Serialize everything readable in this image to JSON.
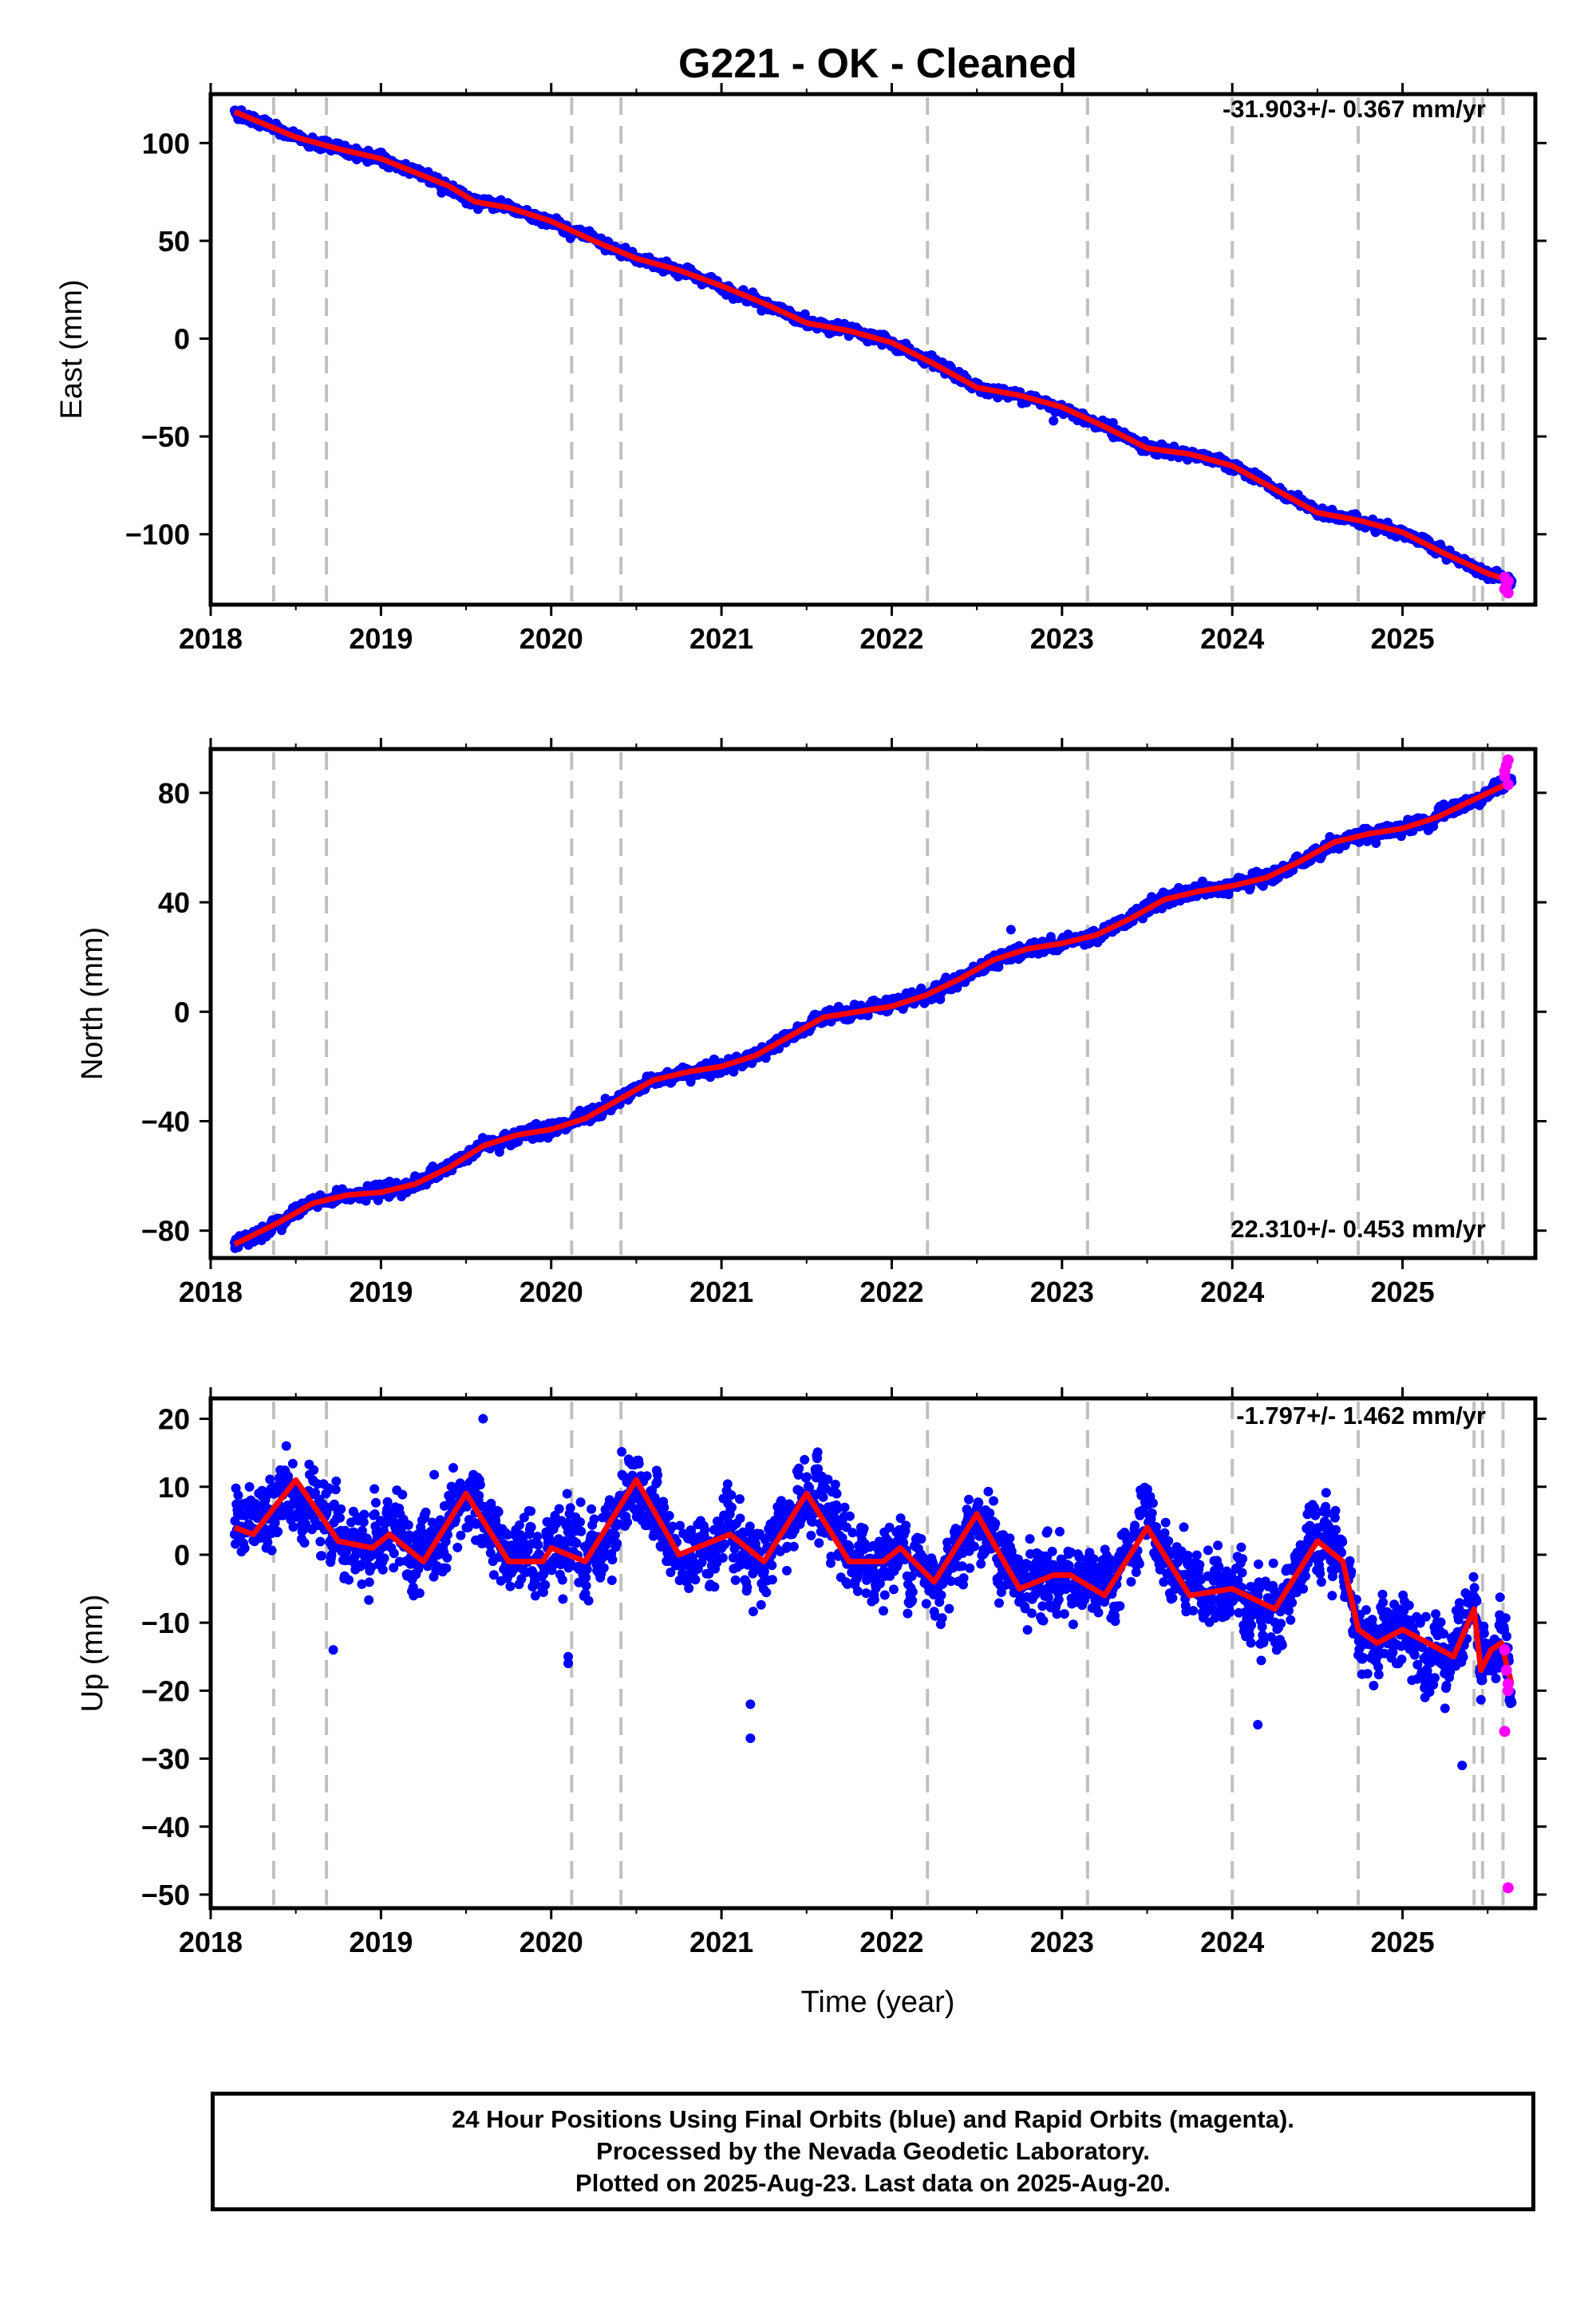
{
  "title": "G221  - OK - Cleaned",
  "xlabel": "Time (year)",
  "footer": {
    "line1": "24 Hour Positions Using Final Orbits (blue) and Rapid Orbits (magenta).",
    "line2": "Processed by the Nevada Geodetic Laboratory.",
    "line3": "Plotted on 2025-Aug-23. Last data on 2025-Aug-20."
  },
  "colors": {
    "final": "#0000ff",
    "rapid": "#ff00ff",
    "model": "#ff0000",
    "events": "#c0c0c0"
  },
  "chart_data": [
    {
      "type": "scatter",
      "ylabel": "East (mm)",
      "rate": "-31.903+/- 0.367 mm/yr",
      "xlim": [
        2018.0,
        2025.78
      ],
      "ylim": [
        -136,
        125
      ],
      "xticks": [
        2018,
        2019,
        2020,
        2021,
        2022,
        2023,
        2024,
        2025
      ],
      "yticks": [
        100,
        50,
        0,
        -50,
        -100
      ],
      "ytick_labels": [
        "100",
        "50",
        "0",
        "−50",
        "−100"
      ],
      "events": [
        2018.37,
        2018.68,
        2020.12,
        2020.41,
        2022.21,
        2023.15,
        2024.0,
        2024.74,
        2025.42,
        2025.47,
        2025.59
      ],
      "trend_knots": [
        [
          2018.14,
          116
        ],
        [
          2018.5,
          103
        ],
        [
          2018.75,
          97
        ],
        [
          2019.0,
          92
        ],
        [
          2019.4,
          78
        ],
        [
          2019.55,
          70
        ],
        [
          2019.75,
          67
        ],
        [
          2020.0,
          60
        ],
        [
          2020.25,
          50
        ],
        [
          2020.5,
          41
        ],
        [
          2020.75,
          35
        ],
        [
          2021.0,
          27
        ],
        [
          2021.25,
          18
        ],
        [
          2021.5,
          8
        ],
        [
          2021.75,
          4
        ],
        [
          2022.0,
          -2
        ],
        [
          2022.25,
          -13
        ],
        [
          2022.5,
          -25
        ],
        [
          2022.75,
          -29
        ],
        [
          2023.0,
          -35
        ],
        [
          2023.25,
          -45
        ],
        [
          2023.5,
          -56
        ],
        [
          2023.75,
          -59
        ],
        [
          2024.0,
          -65
        ],
        [
          2024.25,
          -77
        ],
        [
          2024.5,
          -89
        ],
        [
          2024.75,
          -93
        ],
        [
          2025.0,
          -99
        ],
        [
          2025.25,
          -110
        ],
        [
          2025.5,
          -120
        ],
        [
          2025.64,
          -124
        ]
      ],
      "model_series": {
        "name": "",
        "values": [
          [
            2018.14,
            116
          ],
          [
            2018.5,
            103
          ],
          [
            2018.75,
            97
          ],
          [
            2019.0,
            92
          ],
          [
            2019.4,
            78
          ],
          [
            2019.55,
            70
          ],
          [
            2019.75,
            67
          ],
          [
            2020.0,
            60
          ],
          [
            2020.25,
            50
          ],
          [
            2020.5,
            41
          ],
          [
            2020.75,
            35
          ],
          [
            2021.0,
            27
          ],
          [
            2021.25,
            18
          ],
          [
            2021.5,
            8
          ],
          [
            2021.75,
            4
          ],
          [
            2022.0,
            -2
          ],
          [
            2022.25,
            -13
          ],
          [
            2022.5,
            -25
          ],
          [
            2022.75,
            -29
          ],
          [
            2023.0,
            -35
          ],
          [
            2023.25,
            -45
          ],
          [
            2023.5,
            -56
          ],
          [
            2023.75,
            -59
          ],
          [
            2024.0,
            -65
          ],
          [
            2024.25,
            -77
          ],
          [
            2024.5,
            -89
          ],
          [
            2024.75,
            -93
          ],
          [
            2025.0,
            -99
          ],
          [
            2025.25,
            -110
          ],
          [
            2025.5,
            -120
          ],
          [
            2025.64,
            -124
          ]
        ]
      },
      "noise_mm": 1.6,
      "outliers": [
        [
          2023.3,
          -43
        ],
        [
          2022.95,
          -42
        ]
      ],
      "rapid_points": [
        [
          2025.6,
          -122
        ],
        [
          2025.61,
          -126
        ],
        [
          2025.62,
          -130
        ],
        [
          2025.62,
          -124
        ],
        [
          2025.6,
          -128
        ]
      ]
    },
    {
      "type": "scatter",
      "ylabel": "North (mm)",
      "rate": "22.310+/- 0.453 mm/yr",
      "xlim": [
        2018.0,
        2025.78
      ],
      "ylim": [
        -90,
        96
      ],
      "xticks": [
        2018,
        2019,
        2020,
        2021,
        2022,
        2023,
        2024,
        2025
      ],
      "yticks": [
        80,
        40,
        0,
        -40,
        -80
      ],
      "ytick_labels": [
        "80",
        "40",
        "0",
        "−40",
        "−80"
      ],
      "events": [
        2018.37,
        2018.68,
        2020.12,
        2020.41,
        2022.21,
        2023.15,
        2024.0,
        2024.74,
        2025.42,
        2025.47,
        2025.59
      ],
      "trend_knots": [
        [
          2018.14,
          -85
        ],
        [
          2018.4,
          -77
        ],
        [
          2018.6,
          -70
        ],
        [
          2018.8,
          -67
        ],
        [
          2019.0,
          -66
        ],
        [
          2019.2,
          -63
        ],
        [
          2019.4,
          -57
        ],
        [
          2019.6,
          -49
        ],
        [
          2019.8,
          -45
        ],
        [
          2020.0,
          -43
        ],
        [
          2020.2,
          -39
        ],
        [
          2020.4,
          -32
        ],
        [
          2020.6,
          -25
        ],
        [
          2020.8,
          -22
        ],
        [
          2021.0,
          -20
        ],
        [
          2021.2,
          -16
        ],
        [
          2021.4,
          -9
        ],
        [
          2021.6,
          -2
        ],
        [
          2021.8,
          0
        ],
        [
          2022.0,
          2
        ],
        [
          2022.2,
          6
        ],
        [
          2022.4,
          12
        ],
        [
          2022.6,
          19
        ],
        [
          2022.8,
          23
        ],
        [
          2023.0,
          25
        ],
        [
          2023.2,
          28
        ],
        [
          2023.4,
          34
        ],
        [
          2023.6,
          41
        ],
        [
          2023.8,
          44
        ],
        [
          2024.0,
          46
        ],
        [
          2024.2,
          49
        ],
        [
          2024.4,
          55
        ],
        [
          2024.6,
          62
        ],
        [
          2024.8,
          65
        ],
        [
          2025.0,
          67
        ],
        [
          2025.2,
          71
        ],
        [
          2025.4,
          77
        ],
        [
          2025.64,
          84
        ]
      ],
      "model_series": {
        "name": "",
        "values": [
          [
            2018.14,
            -85
          ],
          [
            2018.4,
            -77
          ],
          [
            2018.6,
            -70
          ],
          [
            2018.8,
            -67
          ],
          [
            2019.0,
            -66
          ],
          [
            2019.2,
            -63
          ],
          [
            2019.4,
            -57
          ],
          [
            2019.6,
            -49
          ],
          [
            2019.8,
            -45
          ],
          [
            2020.0,
            -43
          ],
          [
            2020.2,
            -39
          ],
          [
            2020.4,
            -32
          ],
          [
            2020.6,
            -25
          ],
          [
            2020.8,
            -22
          ],
          [
            2021.0,
            -20
          ],
          [
            2021.2,
            -16
          ],
          [
            2021.4,
            -9
          ],
          [
            2021.6,
            -2
          ],
          [
            2021.8,
            0
          ],
          [
            2022.0,
            2
          ],
          [
            2022.2,
            6
          ],
          [
            2022.4,
            12
          ],
          [
            2022.6,
            19
          ],
          [
            2022.8,
            23
          ],
          [
            2023.0,
            25
          ],
          [
            2023.2,
            28
          ],
          [
            2023.4,
            34
          ],
          [
            2023.6,
            41
          ],
          [
            2023.8,
            44
          ],
          [
            2024.0,
            46
          ],
          [
            2024.2,
            49
          ],
          [
            2024.4,
            55
          ],
          [
            2024.6,
            62
          ],
          [
            2024.8,
            65
          ],
          [
            2025.0,
            67
          ],
          [
            2025.2,
            71
          ],
          [
            2025.4,
            77
          ],
          [
            2025.64,
            84
          ]
        ]
      },
      "noise_mm": 1.5,
      "outliers": [
        [
          2022.7,
          30
        ],
        [
          2019.05,
          -62
        ]
      ],
      "rapid_points": [
        [
          2025.6,
          86
        ],
        [
          2025.61,
          90
        ],
        [
          2025.62,
          92
        ],
        [
          2025.62,
          83
        ],
        [
          2025.6,
          88
        ]
      ]
    },
    {
      "type": "scatter",
      "ylabel": "Up (mm)",
      "rate": "-1.797+/- 1.462 mm/yr",
      "xlim": [
        2018.0,
        2025.78
      ],
      "ylim": [
        -52,
        23
      ],
      "xticks": [
        2018,
        2019,
        2020,
        2021,
        2022,
        2023,
        2024,
        2025
      ],
      "yticks": [
        20,
        10,
        0,
        -10,
        -20,
        -30,
        -40,
        -50
      ],
      "ytick_labels": [
        "20",
        "10",
        "0",
        "−10",
        "−20",
        "−30",
        "−40",
        "−50"
      ],
      "events": [
        2018.37,
        2018.68,
        2020.12,
        2020.41,
        2022.21,
        2023.15,
        2024.0,
        2024.74,
        2025.42,
        2025.47,
        2025.59
      ],
      "trend_knots": [
        [
          2018.14,
          4
        ],
        [
          2018.25,
          3
        ],
        [
          2018.5,
          11
        ],
        [
          2018.75,
          2
        ],
        [
          2018.95,
          1
        ],
        [
          2019.05,
          3
        ],
        [
          2019.25,
          -1
        ],
        [
          2019.5,
          9
        ],
        [
          2019.75,
          -1
        ],
        [
          2019.95,
          -1
        ],
        [
          2020.0,
          1
        ],
        [
          2020.2,
          -1
        ],
        [
          2020.5,
          11
        ],
        [
          2020.75,
          0
        ],
        [
          2020.95,
          2
        ],
        [
          2021.05,
          3
        ],
        [
          2021.25,
          -1
        ],
        [
          2021.5,
          9
        ],
        [
          2021.75,
          -1
        ],
        [
          2021.95,
          -1
        ],
        [
          2022.05,
          1
        ],
        [
          2022.25,
          -4
        ],
        [
          2022.5,
          6
        ],
        [
          2022.75,
          -5
        ],
        [
          2022.95,
          -3
        ],
        [
          2023.05,
          -3
        ],
        [
          2023.25,
          -6
        ],
        [
          2023.5,
          4
        ],
        [
          2023.75,
          -6
        ],
        [
          2024.0,
          -5
        ],
        [
          2024.25,
          -8
        ],
        [
          2024.5,
          2
        ],
        [
          2024.65,
          -1
        ],
        [
          2024.74,
          -11
        ],
        [
          2024.85,
          -13
        ],
        [
          2025.0,
          -11
        ],
        [
          2025.15,
          -13
        ],
        [
          2025.3,
          -15
        ],
        [
          2025.42,
          -8
        ],
        [
          2025.46,
          -17
        ],
        [
          2025.52,
          -14
        ],
        [
          2025.58,
          -13
        ],
        [
          2025.64,
          -19
        ]
      ],
      "model_series": {
        "name": "",
        "values": [
          [
            2018.14,
            4
          ],
          [
            2018.25,
            3
          ],
          [
            2018.5,
            11
          ],
          [
            2018.75,
            2
          ],
          [
            2018.95,
            1
          ],
          [
            2019.05,
            3
          ],
          [
            2019.25,
            -1
          ],
          [
            2019.5,
            9
          ],
          [
            2019.75,
            -1
          ],
          [
            2019.95,
            -1
          ],
          [
            2020.0,
            1
          ],
          [
            2020.2,
            -1
          ],
          [
            2020.5,
            11
          ],
          [
            2020.75,
            0
          ],
          [
            2020.95,
            2
          ],
          [
            2021.05,
            3
          ],
          [
            2021.25,
            -1
          ],
          [
            2021.5,
            9
          ],
          [
            2021.75,
            -1
          ],
          [
            2021.95,
            -1
          ],
          [
            2022.05,
            1
          ],
          [
            2022.25,
            -4
          ],
          [
            2022.5,
            6
          ],
          [
            2022.75,
            -5
          ],
          [
            2022.95,
            -3
          ],
          [
            2023.05,
            -3
          ],
          [
            2023.25,
            -6
          ],
          [
            2023.5,
            4
          ],
          [
            2023.75,
            -6
          ],
          [
            2024.0,
            -5
          ],
          [
            2024.25,
            -8
          ],
          [
            2024.5,
            2
          ],
          [
            2024.65,
            -1
          ],
          [
            2024.74,
            -11
          ],
          [
            2024.85,
            -13
          ],
          [
            2025.0,
            -11
          ],
          [
            2025.15,
            -13
          ],
          [
            2025.3,
            -15
          ],
          [
            2025.42,
            -8
          ],
          [
            2025.46,
            -17
          ],
          [
            2025.52,
            -14
          ],
          [
            2025.58,
            -13
          ],
          [
            2025.64,
            -19
          ]
        ]
      },
      "noise_mm": 3.6,
      "outliers": [
        [
          2021.17,
          -22
        ],
        [
          2021.17,
          -27
        ],
        [
          2020.1,
          -15
        ],
        [
          2020.1,
          -16
        ],
        [
          2024.15,
          -25
        ],
        [
          2025.35,
          -31
        ],
        [
          2018.72,
          -14
        ],
        [
          2019.6,
          20
        ]
      ],
      "rapid_points": [
        [
          2025.6,
          -14
        ],
        [
          2025.61,
          -17
        ],
        [
          2025.62,
          -20
        ],
        [
          2025.62,
          -19
        ],
        [
          2025.6,
          -26
        ],
        [
          2025.62,
          -49
        ]
      ]
    }
  ]
}
